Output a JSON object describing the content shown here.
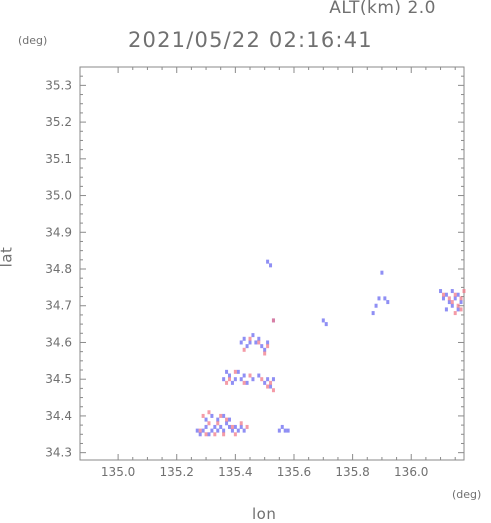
{
  "header": {
    "alt_label": "ALT(km) 2.0",
    "datetime": "2021/05/22 02:16:41"
  },
  "chart_data": {
    "type": "scatter",
    "title": "2021/05/22 02:16:41",
    "xlabel": "lon",
    "ylabel": "lat",
    "x_unit": "(deg)",
    "y_unit": "(deg)",
    "xlim": [
      134.87,
      136.18
    ],
    "ylim": [
      34.28,
      35.35
    ],
    "x_ticks": [
      "135.0",
      "135.2",
      "135.4",
      "135.6",
      "135.8",
      "136.0"
    ],
    "y_ticks": [
      "34.3",
      "34.4",
      "34.5",
      "34.6",
      "34.7",
      "34.8",
      "34.9",
      "35.0",
      "35.1",
      "35.2",
      "35.3"
    ],
    "grid": false,
    "colors": {
      "blue": "#6a6af0",
      "red": "#f07a8a",
      "axis": "#8a8a8a"
    },
    "series": [
      {
        "color": "blue",
        "points": [
          [
            135.27,
            34.36
          ],
          [
            135.28,
            34.35
          ],
          [
            135.29,
            34.36
          ],
          [
            135.3,
            34.37
          ],
          [
            135.31,
            34.35
          ],
          [
            135.32,
            34.36
          ],
          [
            135.33,
            34.37
          ],
          [
            135.34,
            34.36
          ],
          [
            135.35,
            34.37
          ],
          [
            135.36,
            34.36
          ],
          [
            135.37,
            34.38
          ],
          [
            135.38,
            34.37
          ],
          [
            135.39,
            34.36
          ],
          [
            135.4,
            34.37
          ],
          [
            135.41,
            34.36
          ],
          [
            135.42,
            34.37
          ],
          [
            135.43,
            34.36
          ],
          [
            135.3,
            34.39
          ],
          [
            135.32,
            34.4
          ],
          [
            135.34,
            34.39
          ],
          [
            135.36,
            34.4
          ],
          [
            135.38,
            34.39
          ],
          [
            135.55,
            34.36
          ],
          [
            135.56,
            34.37
          ],
          [
            135.57,
            34.36
          ],
          [
            135.58,
            34.36
          ],
          [
            135.36,
            34.5
          ],
          [
            135.37,
            34.52
          ],
          [
            135.38,
            34.51
          ],
          [
            135.39,
            34.49
          ],
          [
            135.4,
            34.5
          ],
          [
            135.41,
            34.52
          ],
          [
            135.42,
            34.5
          ],
          [
            135.43,
            34.51
          ],
          [
            135.44,
            34.49
          ],
          [
            135.46,
            34.5
          ],
          [
            135.48,
            34.51
          ],
          [
            135.5,
            34.49
          ],
          [
            135.51,
            34.5
          ],
          [
            135.52,
            34.48
          ],
          [
            135.53,
            34.5
          ],
          [
            135.42,
            34.6
          ],
          [
            135.43,
            34.61
          ],
          [
            135.44,
            34.59
          ],
          [
            135.45,
            34.6
          ],
          [
            135.46,
            34.62
          ],
          [
            135.47,
            34.6
          ],
          [
            135.48,
            34.61
          ],
          [
            135.49,
            34.59
          ],
          [
            135.5,
            34.58
          ],
          [
            135.51,
            34.6
          ],
          [
            135.51,
            34.82
          ],
          [
            135.52,
            34.81
          ],
          [
            135.53,
            34.66
          ],
          [
            135.7,
            34.66
          ],
          [
            135.71,
            34.65
          ],
          [
            135.87,
            34.68
          ],
          [
            135.88,
            34.7
          ],
          [
            135.89,
            34.72
          ],
          [
            135.9,
            34.79
          ],
          [
            135.91,
            34.72
          ],
          [
            135.92,
            34.71
          ],
          [
            136.1,
            34.74
          ],
          [
            136.11,
            34.72
          ],
          [
            136.12,
            34.73
          ],
          [
            136.13,
            34.71
          ],
          [
            136.14,
            34.74
          ],
          [
            136.15,
            34.72
          ],
          [
            136.16,
            34.73
          ],
          [
            136.17,
            34.71
          ],
          [
            136.12,
            34.69
          ],
          [
            136.14,
            34.7
          ],
          [
            136.16,
            34.69
          ]
        ]
      },
      {
        "color": "red",
        "points": [
          [
            135.28,
            34.36
          ],
          [
            135.3,
            34.35
          ],
          [
            135.31,
            34.38
          ],
          [
            135.33,
            34.35
          ],
          [
            135.34,
            34.38
          ],
          [
            135.35,
            34.4
          ],
          [
            135.36,
            34.35
          ],
          [
            135.37,
            34.39
          ],
          [
            135.39,
            34.37
          ],
          [
            135.4,
            34.35
          ],
          [
            135.42,
            34.38
          ],
          [
            135.44,
            34.37
          ],
          [
            135.29,
            34.4
          ],
          [
            135.31,
            34.41
          ],
          [
            135.37,
            34.49
          ],
          [
            135.38,
            34.5
          ],
          [
            135.4,
            34.52
          ],
          [
            135.43,
            34.49
          ],
          [
            135.45,
            34.51
          ],
          [
            135.49,
            34.5
          ],
          [
            135.51,
            34.48
          ],
          [
            135.52,
            34.49
          ],
          [
            135.53,
            34.47
          ],
          [
            135.43,
            34.58
          ],
          [
            135.45,
            34.61
          ],
          [
            135.48,
            34.6
          ],
          [
            135.5,
            34.57
          ],
          [
            135.51,
            34.59
          ],
          [
            135.53,
            34.66
          ],
          [
            136.11,
            34.73
          ],
          [
            136.13,
            34.72
          ],
          [
            136.14,
            34.71
          ],
          [
            136.15,
            34.73
          ],
          [
            136.16,
            34.7
          ],
          [
            136.17,
            34.72
          ],
          [
            136.18,
            34.74
          ],
          [
            136.17,
            34.69
          ],
          [
            136.15,
            34.68
          ]
        ]
      }
    ]
  }
}
